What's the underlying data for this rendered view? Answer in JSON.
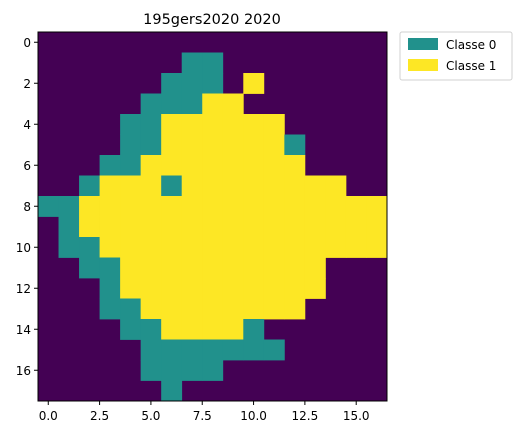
{
  "chart_data": {
    "type": "heatmap",
    "title": "195gers2020 2020",
    "xlabel": "",
    "ylabel": "",
    "grid": false,
    "legend_placement": "outside-top-right",
    "x_ticks": [
      "0.0",
      "2.5",
      "5.0",
      "7.5",
      "10.0",
      "12.5",
      "15.0"
    ],
    "x_tick_values": [
      0,
      2.5,
      5,
      7.5,
      10,
      12.5,
      15
    ],
    "y_ticks": [
      "0",
      "2",
      "4",
      "6",
      "8",
      "10",
      "12",
      "14",
      "16"
    ],
    "y_tick_values": [
      0,
      2,
      4,
      6,
      8,
      10,
      12,
      14,
      16
    ],
    "xlim": [
      -0.5,
      16.5
    ],
    "ylim": [
      17.5,
      -0.5
    ],
    "colors": {
      "background": "#440154",
      "0": "#21918c",
      "1": "#fde725"
    },
    "legend": [
      {
        "value": 0,
        "label": "Classe 0",
        "color": "#21918c"
      },
      {
        "value": 1,
        "label": "Classe 1",
        "color": "#fde725"
      }
    ],
    "grid_values": [
      "-----------------",
      "-------00--------",
      "------000-1------",
      "-----00011-------",
      "----00111111-----",
      "----001111110----",
      "---0011111111----",
      "--0111011111111--",
      "00111111111111111",
      "-01111111111111110",
      "-0011111111111111",
      "--001111111111---",
      "---01111111111---",
      "---0011111111----",
      "----0011110------",
      "-----0000000-----",
      "-----0000--------",
      "------0----------"
    ]
  }
}
